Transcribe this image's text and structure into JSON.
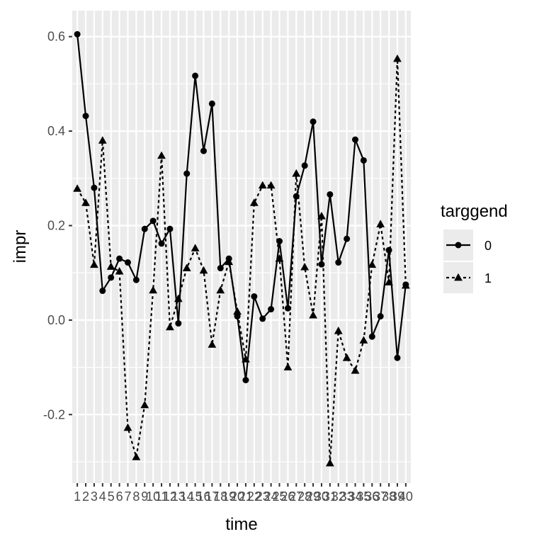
{
  "chart_data": {
    "type": "line",
    "xlabel": "time",
    "ylabel": "impr",
    "x": [
      1,
      2,
      3,
      4,
      5,
      6,
      7,
      8,
      9,
      10,
      11,
      12,
      13,
      14,
      15,
      16,
      17,
      18,
      19,
      20,
      21,
      22,
      23,
      24,
      25,
      26,
      27,
      28,
      29,
      30,
      31,
      32,
      33,
      34,
      35,
      36,
      37,
      38,
      39,
      40
    ],
    "x_tick_labels": [
      "1",
      "2",
      "3",
      "4",
      "5",
      "6",
      "7",
      "8",
      "9",
      "10",
      "11",
      "12",
      "13",
      "14",
      "15",
      "16",
      "17",
      "18",
      "19",
      "20",
      "21",
      "22",
      "23",
      "24",
      "25",
      "26",
      "27",
      "28",
      "29",
      "30",
      "31",
      "32",
      "33",
      "34",
      "35",
      "36",
      "37",
      "38",
      "39",
      "40"
    ],
    "y_ticks": [
      -0.2,
      0.0,
      0.2,
      0.4,
      0.6
    ],
    "y_tick_labels": [
      "-0.2",
      "0.0",
      "0.2",
      "0.4",
      "0.6"
    ],
    "ylim": [
      -0.345,
      0.655
    ],
    "grid": true,
    "legend": {
      "title": "targgend",
      "position": "right"
    },
    "series": [
      {
        "name": "0",
        "marker": "circle",
        "linestyle": "solid",
        "color": "#000000",
        "values": [
          0.605,
          0.432,
          0.28,
          0.062,
          0.09,
          0.13,
          0.122,
          0.085,
          0.193,
          0.21,
          0.162,
          0.193,
          -0.007,
          0.31,
          0.517,
          0.358,
          0.458,
          0.11,
          0.13,
          0.008,
          -0.127,
          0.05,
          0.003,
          0.023,
          0.167,
          0.025,
          0.262,
          0.327,
          0.42,
          0.118,
          0.266,
          0.122,
          0.172,
          0.382,
          0.338,
          -0.035,
          0.008,
          0.148,
          -0.08,
          0.075
        ]
      },
      {
        "name": "1",
        "marker": "triangle",
        "linestyle": "dashed",
        "color": "#000000",
        "values": [
          0.278,
          0.248,
          0.117,
          0.38,
          0.113,
          0.103,
          -0.228,
          -0.29,
          -0.18,
          0.063,
          0.348,
          -0.015,
          0.045,
          0.11,
          0.152,
          0.105,
          -0.052,
          0.063,
          0.123,
          0.018,
          -0.083,
          0.248,
          0.285,
          0.285,
          0.13,
          -0.1,
          0.31,
          0.112,
          0.01,
          0.22,
          -0.303,
          -0.023,
          -0.08,
          -0.107,
          -0.043,
          0.117,
          0.203,
          0.08,
          0.553,
          0.073
        ]
      }
    ]
  }
}
